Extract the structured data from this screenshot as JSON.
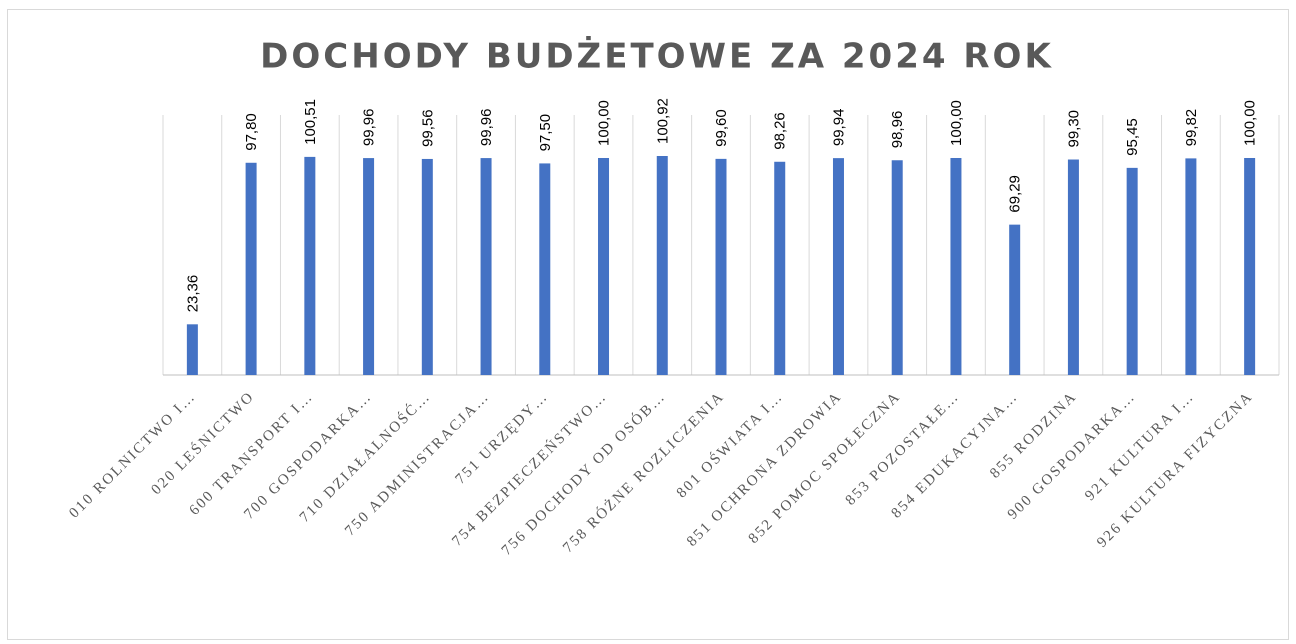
{
  "chart_data": {
    "type": "bar",
    "title": "DOCHODY BUDŻETOWE ZA 2024 ROK",
    "categories": [
      "010 ROLNICTWO I…",
      "020 LEŚNICTWO",
      "600 TRANSPORT I…",
      "700 GOSPODARKA…",
      "710 DZIAŁALNOŚĆ…",
      "750 ADMINISTRACJA…",
      "751 URZĘDY…",
      "754 BEZPIECZEŃSTWO…",
      "756 DOCHODY OD OSÓB…",
      "758 RÓŻNE ROZLICZENIA",
      "801 OŚWIATA I…",
      "851 OCHRONA ZDROWIA",
      "852 POMOC SPOŁECZNA",
      "853 POZOSTAŁE…",
      "854 EDUKACYJNA…",
      "855 RODZINA",
      "900 GOSPODARKA…",
      "921 KULTURA I…",
      "926 KULTURA FIZYCZNA"
    ],
    "values": [
      23.36,
      97.8,
      100.51,
      99.96,
      99.56,
      99.96,
      97.5,
      100.0,
      100.92,
      99.6,
      98.26,
      99.94,
      98.96,
      100.0,
      69.29,
      99.3,
      95.45,
      99.82,
      100.0
    ],
    "value_labels": [
      "23,36",
      "97,80",
      "100,51",
      "99,96",
      "99,56",
      "99,96",
      "97,50",
      "100,00",
      "100,92",
      "99,60",
      "98,26",
      "99,94",
      "98,96",
      "100,00",
      "69,29",
      "99,30",
      "95,45",
      "99,82",
      "100,00"
    ],
    "color": "#4472c4",
    "grid": true
  }
}
